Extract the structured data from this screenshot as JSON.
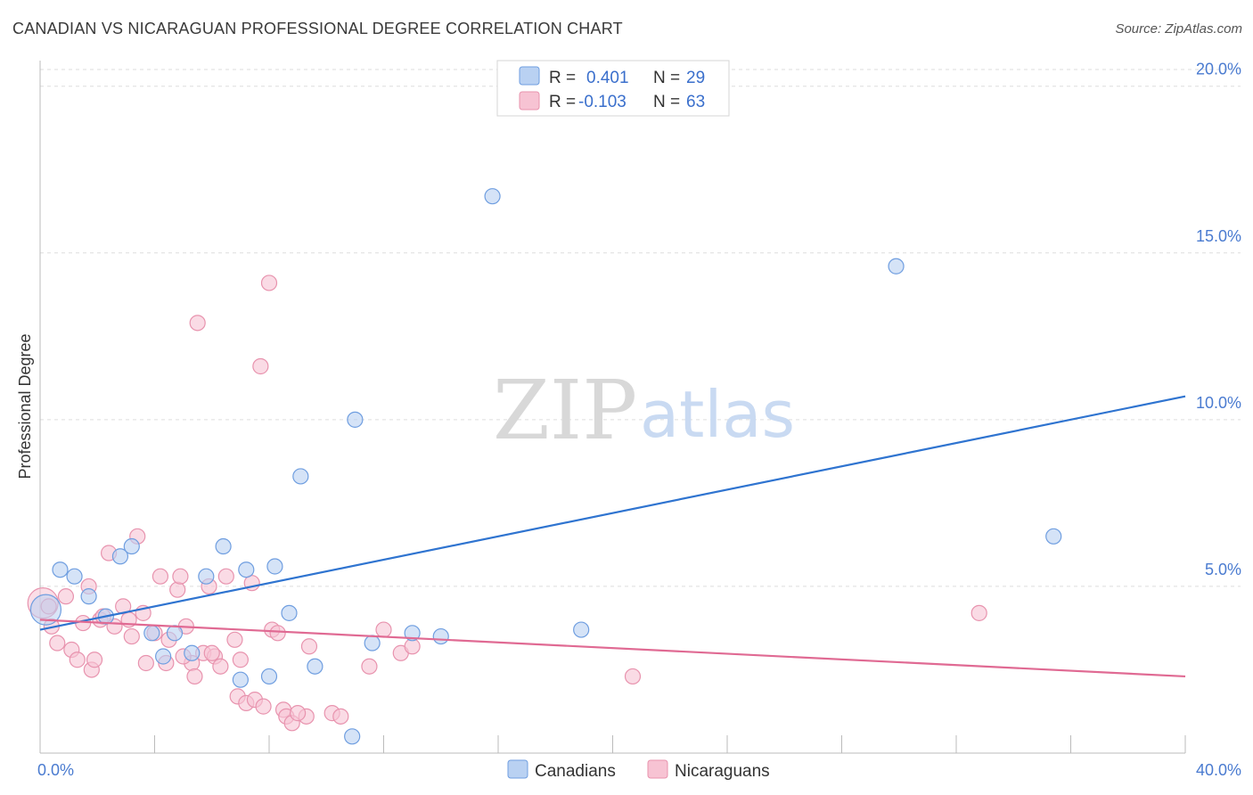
{
  "title": "CANADIAN VS NICARAGUAN PROFESSIONAL DEGREE CORRELATION CHART",
  "source": "Source: ZipAtlas.com",
  "watermark": {
    "part1": "ZIP",
    "part2": "atlas"
  },
  "colors": {
    "blue_fill": "#b9d1f2",
    "blue_stroke": "#6f9ee0",
    "blue_line": "#2f74d0",
    "pink_fill": "#f7c3d3",
    "pink_stroke": "#e893ae",
    "pink_line": "#e06a93",
    "grid": "#dddddd",
    "tick_text": "#4a7bd0"
  },
  "legend": {
    "rows": [
      {
        "r_label": "R =",
        "r_value": "0.401",
        "n_label": "N =",
        "n_value": "29"
      },
      {
        "r_label": "R =",
        "r_value": "-0.103",
        "n_label": "N =",
        "n_value": "63"
      }
    ]
  },
  "bottom_legend": [
    "Canadians",
    "Nicaraguans"
  ],
  "chart_data": {
    "type": "scatter",
    "title": "CANADIAN VS NICARAGUAN PROFESSIONAL DEGREE CORRELATION CHART",
    "xlabel": "",
    "ylabel": "Professional Degree",
    "xlim": [
      0,
      40
    ],
    "ylim": [
      0,
      20.5
    ],
    "x_tick_labels": [
      "0.0%",
      "40.0%"
    ],
    "y_ticks": [
      5,
      10,
      15,
      20
    ],
    "y_tick_labels": [
      "5.0%",
      "10.0%",
      "15.0%",
      "20.0%"
    ],
    "series": [
      {
        "name": "Canadians",
        "trend": {
          "x": [
            0,
            40
          ],
          "y": [
            3.7,
            10.7
          ]
        },
        "points": [
          {
            "x": 0.2,
            "y": 4.3,
            "big": true
          },
          {
            "x": 0.7,
            "y": 5.5
          },
          {
            "x": 1.2,
            "y": 5.3
          },
          {
            "x": 1.7,
            "y": 4.7
          },
          {
            "x": 2.3,
            "y": 4.1
          },
          {
            "x": 2.8,
            "y": 5.9
          },
          {
            "x": 3.2,
            "y": 6.2
          },
          {
            "x": 3.9,
            "y": 3.6
          },
          {
            "x": 4.3,
            "y": 2.9
          },
          {
            "x": 4.7,
            "y": 3.6
          },
          {
            "x": 5.3,
            "y": 3.0
          },
          {
            "x": 5.8,
            "y": 5.3
          },
          {
            "x": 6.4,
            "y": 6.2
          },
          {
            "x": 7.0,
            "y": 2.2
          },
          {
            "x": 7.2,
            "y": 5.5
          },
          {
            "x": 8.0,
            "y": 2.3
          },
          {
            "x": 8.2,
            "y": 5.6
          },
          {
            "x": 8.7,
            "y": 4.2
          },
          {
            "x": 9.1,
            "y": 8.3
          },
          {
            "x": 9.6,
            "y": 2.6
          },
          {
            "x": 10.9,
            "y": 0.5
          },
          {
            "x": 11.0,
            "y": 10.0
          },
          {
            "x": 11.6,
            "y": 3.3
          },
          {
            "x": 13.0,
            "y": 3.6
          },
          {
            "x": 14.0,
            "y": 3.5
          },
          {
            "x": 15.8,
            "y": 16.7
          },
          {
            "x": 18.9,
            "y": 3.7
          },
          {
            "x": 29.9,
            "y": 14.6
          },
          {
            "x": 35.4,
            "y": 6.5
          }
        ]
      },
      {
        "name": "Nicaraguans",
        "trend": {
          "x": [
            0,
            40
          ],
          "y": [
            4.0,
            2.3
          ]
        },
        "points": [
          {
            "x": 0.1,
            "y": 4.5,
            "big": true
          },
          {
            "x": 0.4,
            "y": 3.8
          },
          {
            "x": 0.6,
            "y": 3.3
          },
          {
            "x": 0.9,
            "y": 4.7
          },
          {
            "x": 1.1,
            "y": 3.1
          },
          {
            "x": 1.3,
            "y": 2.8
          },
          {
            "x": 1.5,
            "y": 3.9
          },
          {
            "x": 1.7,
            "y": 5.0
          },
          {
            "x": 1.8,
            "y": 2.5
          },
          {
            "x": 1.9,
            "y": 2.8
          },
          {
            "x": 2.1,
            "y": 4.0
          },
          {
            "x": 2.4,
            "y": 6.0
          },
          {
            "x": 2.6,
            "y": 3.8
          },
          {
            "x": 2.9,
            "y": 4.4
          },
          {
            "x": 3.1,
            "y": 4.0
          },
          {
            "x": 3.2,
            "y": 3.5
          },
          {
            "x": 3.4,
            "y": 6.5
          },
          {
            "x": 3.6,
            "y": 4.2
          },
          {
            "x": 3.7,
            "y": 2.7
          },
          {
            "x": 4.0,
            "y": 3.6
          },
          {
            "x": 4.2,
            "y": 5.3
          },
          {
            "x": 4.4,
            "y": 2.7
          },
          {
            "x": 4.5,
            "y": 3.4
          },
          {
            "x": 4.8,
            "y": 4.9
          },
          {
            "x": 4.9,
            "y": 5.3
          },
          {
            "x": 5.1,
            "y": 3.8
          },
          {
            "x": 5.3,
            "y": 2.7
          },
          {
            "x": 5.4,
            "y": 2.3
          },
          {
            "x": 5.5,
            "y": 12.9
          },
          {
            "x": 5.9,
            "y": 5.0
          },
          {
            "x": 5.7,
            "y": 3.0
          },
          {
            "x": 6.1,
            "y": 2.9
          },
          {
            "x": 6.3,
            "y": 2.6
          },
          {
            "x": 6.5,
            "y": 5.3
          },
          {
            "x": 6.8,
            "y": 3.4
          },
          {
            "x": 6.9,
            "y": 1.7
          },
          {
            "x": 7.0,
            "y": 2.8
          },
          {
            "x": 7.2,
            "y": 1.5
          },
          {
            "x": 7.4,
            "y": 5.1
          },
          {
            "x": 7.5,
            "y": 1.6
          },
          {
            "x": 7.7,
            "y": 11.6
          },
          {
            "x": 8.0,
            "y": 14.1
          },
          {
            "x": 8.1,
            "y": 3.7
          },
          {
            "x": 8.3,
            "y": 3.6
          },
          {
            "x": 8.5,
            "y": 1.3
          },
          {
            "x": 8.6,
            "y": 1.1
          },
          {
            "x": 8.8,
            "y": 0.9
          },
          {
            "x": 9.3,
            "y": 1.1
          },
          {
            "x": 9.4,
            "y": 3.2
          },
          {
            "x": 10.2,
            "y": 1.2
          },
          {
            "x": 10.5,
            "y": 1.1
          },
          {
            "x": 11.5,
            "y": 2.6
          },
          {
            "x": 12.0,
            "y": 3.7
          },
          {
            "x": 12.6,
            "y": 3.0
          },
          {
            "x": 13.0,
            "y": 3.2
          },
          {
            "x": 20.7,
            "y": 2.3
          },
          {
            "x": 32.8,
            "y": 4.2
          },
          {
            "x": 0.3,
            "y": 4.4
          },
          {
            "x": 2.2,
            "y": 4.1
          },
          {
            "x": 5.0,
            "y": 2.9
          },
          {
            "x": 6.0,
            "y": 3.0
          },
          {
            "x": 7.8,
            "y": 1.4
          },
          {
            "x": 9.0,
            "y": 1.2
          }
        ]
      }
    ]
  }
}
